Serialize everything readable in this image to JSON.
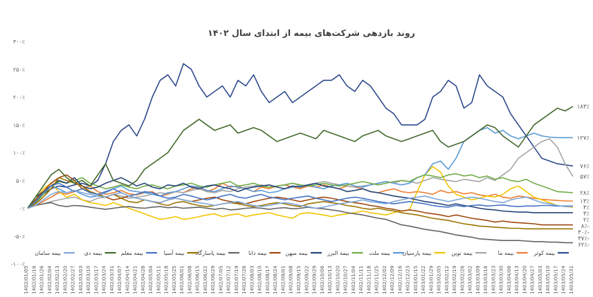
{
  "chart_data": {
    "type": "line",
    "title": "روند بازدهی شرکت‌های بیمه از ابتدای سال ۱۴۰۲",
    "xlabel": "",
    "ylabel": "",
    "ylim": [
      -100,
      300
    ],
    "y_ticks": [
      300,
      250,
      200,
      150,
      100,
      50,
      0,
      -50,
      -100
    ],
    "y_tick_labels": [
      "۳۰۰٪",
      "۲۵۰٪",
      "۲۰۰٪",
      "۱۵۰٪",
      "۱۰۰٪",
      "۵۰٪",
      "۰٪",
      "-۵۰٪",
      "-۱۰۰٪"
    ],
    "grid": false,
    "legend_position": "bottom",
    "x": [
      "1402/01/05",
      "1402/01/16",
      "1402/01/26",
      "1402/02/04",
      "1402/02/13",
      "1402/02/20",
      "1402/02/27",
      "1402/03/03",
      "1402/03/10",
      "1402/03/17",
      "1402/03/24",
      "1402/03/31",
      "1402/04/07",
      "1402/04/14",
      "1402/04/21",
      "1402/04/28",
      "1402/05/04",
      "1402/05/11",
      "1402/05/18",
      "1402/05/25",
      "1402/06/01",
      "1402/06/08",
      "1402/06/15",
      "1402/06/22",
      "1402/06/29",
      "1402/07/05",
      "1402/07/12",
      "1402/07/19",
      "1402/07/26",
      "1402/08/03",
      "1402/08/10",
      "1402/08/17",
      "1402/08/24",
      "1402/09/01",
      "1402/09/08",
      "1402/09/15",
      "1402/09/22",
      "1402/09/29",
      "1402/10/06",
      "1402/10/13",
      "1402/10/20",
      "1402/10/27",
      "1402/11/04",
      "1402/11/11",
      "1402/11/18",
      "1402/11/25",
      "1402/12/02",
      "1402/12/09",
      "1402/12/16",
      "1402/12/23",
      "1403/01/15",
      "1403/01/22",
      "1403/01/29",
      "1403/02/05",
      "1403/02/12",
      "1403/02/19",
      "1403/02/26",
      "1403/03/02",
      "1403/03/09",
      "1403/03/16",
      "1403/03/23",
      "1403/03/30",
      "1403/04/06",
      "1403/04/13",
      "1403/04/20",
      "1403/04/27",
      "1403/05/03",
      "1403/05/10",
      "1403/05/17",
      "1403/05/24",
      "1403/05/31"
    ],
    "series": [
      {
        "name": "بیمه کوثر",
        "color": "#2e4a8c",
        "values": [
          0,
          10,
          25,
          35,
          40,
          38,
          42,
          45,
          40,
          50,
          80,
          120,
          140,
          150,
          130,
          160,
          200,
          230,
          240,
          220,
          260,
          250,
          220,
          200,
          210,
          220,
          200,
          230,
          220,
          240,
          210,
          190,
          200,
          210,
          190,
          200,
          210,
          220,
          230,
          230,
          240,
          220,
          210,
          230,
          220,
          200,
          180,
          170,
          150,
          150,
          150,
          160,
          200,
          210,
          230,
          220,
          180,
          190,
          240,
          220,
          210,
          200,
          170,
          150,
          130,
          110,
          90,
          85,
          80,
          78,
          76
        ],
        "end_label": "۷۶٪"
      },
      {
        "name": "بیمه ما",
        "color": "#ed7d31",
        "values": [
          0,
          5,
          12,
          20,
          28,
          25,
          30,
          35,
          40,
          30,
          25,
          28,
          32,
          26,
          24,
          28,
          30,
          22,
          25,
          30,
          28,
          35,
          38,
          30,
          35,
          45,
          38,
          40,
          35,
          30,
          38,
          35,
          40,
          42,
          38,
          35,
          40,
          38,
          42,
          38,
          35,
          40,
          38,
          35,
          30,
          28,
          32,
          35,
          30,
          28,
          30,
          28,
          25,
          32,
          28,
          30,
          26,
          28,
          24,
          22,
          25,
          20,
          18,
          22,
          20,
          18,
          16,
          15,
          14,
          13,
          13
        ],
        "end_label": "۱۳٪"
      },
      {
        "name": "بیمه نوین",
        "color": "#a5a5a5",
        "values": [
          0,
          5,
          8,
          12,
          15,
          18,
          20,
          15,
          12,
          18,
          20,
          25,
          22,
          18,
          20,
          22,
          25,
          28,
          26,
          30,
          28,
          32,
          35,
          30,
          28,
          32,
          30,
          35,
          38,
          40,
          42,
          38,
          40,
          42,
          45,
          40,
          42,
          45,
          48,
          45,
          42,
          40,
          38,
          40,
          42,
          45,
          48,
          45,
          50,
          48,
          45,
          50,
          55,
          52,
          50,
          48,
          52,
          50,
          48,
          55,
          50,
          60,
          70,
          90,
          100,
          110,
          120,
          125,
          110,
          80,
          57
        ],
        "end_label": "۵۷٪"
      },
      {
        "name": "بیمه پارسیان",
        "color": "#f2c500",
        "values": [
          0,
          15,
          35,
          45,
          30,
          20,
          25,
          15,
          10,
          8,
          5,
          10,
          5,
          0,
          -5,
          -10,
          -15,
          -20,
          -18,
          -15,
          -20,
          -18,
          -15,
          -12,
          -10,
          -15,
          -12,
          -10,
          -15,
          -12,
          -10,
          -8,
          -12,
          -15,
          -18,
          -10,
          -8,
          -10,
          -12,
          -15,
          -12,
          -10,
          -8,
          -5,
          -8,
          -10,
          -12,
          -8,
          -5,
          -3,
          30,
          60,
          75,
          65,
          40,
          25,
          20,
          15,
          18,
          22,
          20,
          25,
          35,
          40,
          30,
          20,
          15,
          10,
          5,
          3,
          2
        ],
        "end_label": "۲٪"
      },
      {
        "name": "بیمه ملت",
        "color": "#5b9bd5",
        "values": [
          0,
          15,
          30,
          40,
          35,
          28,
          32,
          25,
          20,
          22,
          28,
          35,
          40,
          32,
          30,
          28,
          25,
          22,
          28,
          30,
          35,
          40,
          38,
          32,
          30,
          35,
          40,
          38,
          35,
          30,
          32,
          28,
          30,
          35,
          38,
          40,
          42,
          38,
          35,
          40,
          42,
          45,
          40,
          38,
          42,
          45,
          48,
          45,
          42,
          45,
          55,
          60,
          80,
          85,
          70,
          90,
          120,
          130,
          140,
          145,
          135,
          140,
          130,
          125,
          130,
          135,
          130,
          128,
          127,
          127,
          127
        ],
        "end_label": "۱۲۷٪"
      },
      {
        "name": "بیمه البرز",
        "color": "#70ad47",
        "values": [
          0,
          10,
          25,
          40,
          48,
          45,
          50,
          55,
          45,
          40,
          35,
          38,
          42,
          38,
          35,
          40,
          42,
          38,
          35,
          40,
          42,
          45,
          40,
          38,
          42,
          45,
          48,
          40,
          42,
          45,
          40,
          38,
          40,
          42,
          45,
          42,
          40,
          42,
          45,
          42,
          40,
          42,
          45,
          48,
          45,
          42,
          45,
          48,
          50,
          48,
          55,
          60,
          58,
          55,
          60,
          62,
          58,
          60,
          55,
          58,
          52,
          55,
          50,
          48,
          52,
          45,
          40,
          35,
          30,
          29,
          28
        ],
        "end_label": "۲۸٪"
      },
      {
        "name": "بیمه میهن",
        "color": "#264478",
        "values": [
          0,
          20,
          30,
          40,
          50,
          45,
          55,
          40,
          35,
          38,
          45,
          50,
          55,
          48,
          40,
          45,
          38,
          35,
          42,
          40,
          45,
          38,
          35,
          40,
          42,
          38,
          35,
          30,
          35,
          38,
          40,
          42,
          38,
          35,
          40,
          38,
          42,
          45,
          40,
          38,
          35,
          30,
          32,
          35,
          30,
          28,
          25,
          22,
          20,
          18,
          15,
          12,
          10,
          8,
          5,
          8,
          5,
          3,
          0,
          -2,
          -3,
          -5,
          -6,
          -7,
          -7,
          -8,
          -8,
          -8,
          -8,
          -8,
          -8
        ],
        "end_label": "۸٪-"
      },
      {
        "name": "بیمه دانا",
        "color": "#9e480e",
        "values": [
          0,
          15,
          30,
          45,
          55,
          60,
          50,
          35,
          30,
          25,
          20,
          15,
          18,
          22,
          18,
          15,
          12,
          10,
          15,
          18,
          15,
          12,
          15,
          18,
          20,
          15,
          12,
          10,
          8,
          12,
          15,
          18,
          20,
          18,
          15,
          12,
          15,
          18,
          20,
          18,
          15,
          12,
          10,
          8,
          5,
          3,
          0,
          -2,
          -5,
          -3,
          -5,
          -8,
          -10,
          -12,
          -15,
          -12,
          -15,
          -18,
          -20,
          -22,
          -25,
          -23,
          -25,
          -26,
          -27,
          -28,
          -30,
          -30,
          -30,
          -30,
          -30
        ],
        "end_label": "۳۰٪-"
      },
      {
        "name": "بیمه پاسارگاد",
        "color": "#636363",
        "values": [
          0,
          5,
          8,
          10,
          5,
          3,
          5,
          4,
          2,
          0,
          -2,
          0,
          2,
          3,
          1,
          0,
          2,
          3,
          1,
          2,
          0,
          1,
          2,
          0,
          -2,
          0,
          -3,
          -2,
          0,
          1,
          0,
          -2,
          0,
          1,
          -1,
          0,
          2,
          0,
          -1,
          -3,
          -5,
          -8,
          -10,
          -12,
          -15,
          -18,
          -20,
          -25,
          -30,
          -32,
          -35,
          -38,
          -40,
          -42,
          -45,
          -48,
          -50,
          -52,
          -55,
          -56,
          -57,
          -58,
          -58,
          -58,
          -59,
          -60,
          -60,
          -61,
          -61,
          -62,
          -62
        ],
        "end_label": "۶۲٪-"
      },
      {
        "name": "بیمه آسیا",
        "color": "#997300",
        "values": [
          0,
          8,
          20,
          35,
          55,
          50,
          45,
          40,
          30,
          25,
          20,
          25,
          18,
          12,
          10,
          15,
          12,
          8,
          5,
          10,
          12,
          8,
          5,
          3,
          5,
          8,
          10,
          8,
          5,
          3,
          5,
          8,
          10,
          8,
          5,
          3,
          8,
          10,
          12,
          10,
          8,
          5,
          3,
          0,
          -2,
          0,
          -3,
          -5,
          -8,
          -10,
          -12,
          -15,
          -18,
          -20,
          -22,
          -25,
          -28,
          -30,
          -32,
          -33,
          -34,
          -35,
          -36,
          -36,
          -37,
          -37,
          -37,
          -37,
          -37,
          -37,
          -37
        ],
        "end_label": "۳۷٪-"
      },
      {
        "name": "بیمه معلم",
        "color": "#4472c4",
        "values": [
          0,
          12,
          28,
          40,
          45,
          38,
          30,
          35,
          28,
          25,
          30,
          35,
          28,
          22,
          25,
          30,
          28,
          22,
          18,
          20,
          25,
          22,
          18,
          15,
          18,
          22,
          25,
          20,
          18,
          22,
          25,
          20,
          18,
          15,
          18,
          20,
          22,
          18,
          15,
          12,
          15,
          18,
          20,
          18,
          15,
          12,
          10,
          8,
          10,
          12,
          10,
          8,
          5,
          3,
          2,
          5,
          3,
          5,
          6,
          4,
          5,
          6,
          4,
          3,
          4,
          4,
          5,
          5,
          4,
          4,
          4
        ],
        "end_label": "۴٪"
      },
      {
        "name": "بیمه دی",
        "color": "#43682b",
        "values": [
          0,
          20,
          40,
          60,
          70,
          55,
          45,
          50,
          40,
          60,
          80,
          50,
          45,
          40,
          50,
          70,
          80,
          90,
          100,
          120,
          140,
          150,
          160,
          150,
          140,
          145,
          150,
          135,
          140,
          145,
          140,
          130,
          120,
          125,
          130,
          135,
          130,
          125,
          140,
          135,
          130,
          125,
          120,
          130,
          135,
          140,
          130,
          125,
          120,
          125,
          130,
          135,
          140,
          120,
          110,
          115,
          120,
          130,
          140,
          150,
          145,
          130,
          120,
          110,
          130,
          150,
          160,
          170,
          180,
          175,
          183
        ],
        "end_label": "۱۸۳٪"
      },
      {
        "name": "بیمه سامان",
        "color": "#7ea6d8",
        "values": [
          0,
          5,
          15,
          25,
          30,
          28,
          32,
          28,
          25,
          22,
          20,
          25,
          28,
          22,
          18,
          15,
          12,
          10,
          15,
          18,
          15,
          12,
          10,
          8,
          5,
          8,
          10,
          12,
          8,
          5,
          3,
          5,
          8,
          10,
          8,
          5,
          3,
          0,
          2,
          5,
          8,
          10,
          12,
          15,
          12,
          10,
          8,
          12,
          15,
          18,
          20,
          22,
          18,
          15,
          12,
          15,
          18,
          20,
          18,
          15,
          12,
          10,
          15,
          18,
          20,
          15,
          10,
          8,
          5,
          3,
          3
        ],
        "end_label": "۳٪"
      }
    ]
  }
}
